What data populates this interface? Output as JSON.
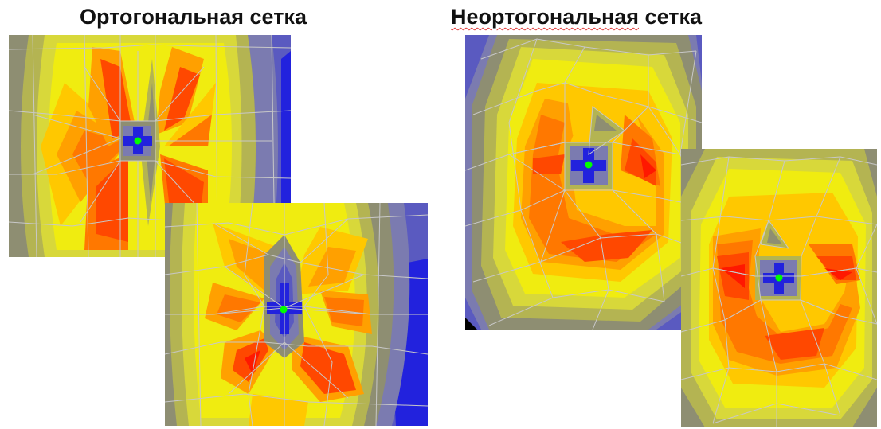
{
  "titles": {
    "left": "Ортогональная сетка",
    "right_misspelled_part": "Неортогональная",
    "right_rest": " сетка"
  },
  "palette": {
    "blue_deep": "#2222dd",
    "blue": "#5a5ac0",
    "grey_blue": "#7b7bb0",
    "olive": "#8e8e72",
    "khaki": "#b4b452",
    "pale_yellow": "#d8d83a",
    "yellow": "#f0ec10",
    "gold": "#ffc800",
    "amber": "#ffa000",
    "orange": "#ff7800",
    "red_orange": "#ff4800",
    "red": "#ff1800",
    "center_node": "#00ff00",
    "mesh_line": "#c8c8c8"
  },
  "panels": [
    {
      "name": "ortho-mesh-a",
      "mesh": "orthogonal"
    },
    {
      "name": "ortho-mesh-b",
      "mesh": "orthogonal"
    },
    {
      "name": "nonortho-mesh-a",
      "mesh": "non-orthogonal"
    },
    {
      "name": "nonortho-mesh-b",
      "mesh": "non-orthogonal"
    }
  ]
}
